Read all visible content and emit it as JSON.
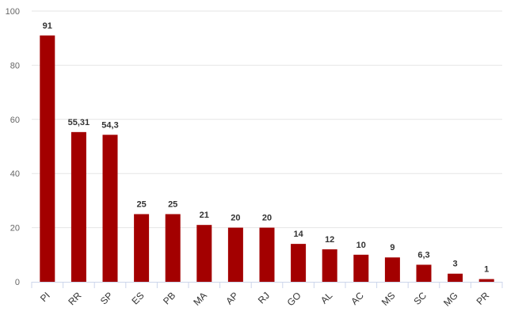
{
  "chart_data": {
    "type": "bar",
    "title": "",
    "xlabel": "",
    "ylabel": "",
    "categories": [
      "PI",
      "RR",
      "SP",
      "ES",
      "PB",
      "MA",
      "AP",
      "RJ",
      "GO",
      "AL",
      "AC",
      "MS",
      "SC",
      "MG",
      "PR"
    ],
    "values": [
      91,
      55.31,
      54.3,
      25,
      25,
      21,
      20,
      20,
      14,
      12,
      10,
      9,
      6.3,
      3,
      1
    ],
    "data_labels": [
      "91",
      "55,31",
      "54,3",
      "25",
      "25",
      "21",
      "20",
      "20",
      "14",
      "12",
      "10",
      "9",
      "6,3",
      "3",
      "1"
    ],
    "ylim": [
      0,
      100
    ],
    "yticks": [
      "0",
      "20",
      "40",
      "60",
      "80",
      "100"
    ],
    "grid": true,
    "legend": "none",
    "bar_color": "#a30000"
  }
}
